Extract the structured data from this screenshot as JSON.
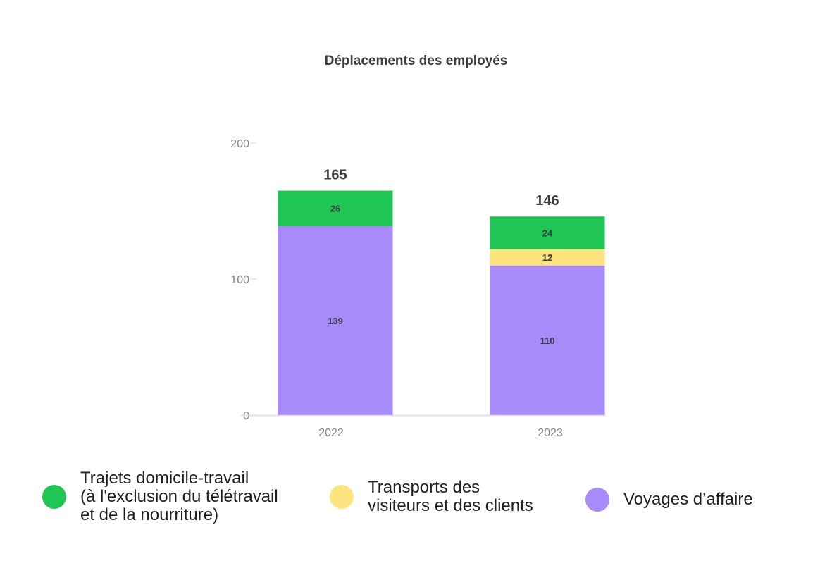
{
  "chart_data": {
    "type": "bar",
    "stacked": true,
    "title": "Déplacements des employés",
    "categories": [
      "2022",
      "2023"
    ],
    "ylim": [
      0,
      200
    ],
    "yticks": [
      0,
      100,
      200
    ],
    "totals": [
      165,
      146
    ],
    "legend_position": "bottom",
    "grid": false,
    "series": [
      {
        "name": "Voyages d’affaire",
        "color": "#a78bfa",
        "values": [
          139,
          110
        ],
        "value_labels": [
          "139",
          "110"
        ]
      },
      {
        "name": "Transports des visiteurs et des clients",
        "color": "#fde47f",
        "values": [
          0,
          12
        ],
        "value_labels": [
          "",
          "12"
        ]
      },
      {
        "name": "Trajets domicile-travail (à l'exclusion du télétravail et de la nourriture)",
        "color": "#1fc653",
        "values": [
          26,
          24
        ],
        "value_labels": [
          "26",
          "24"
        ]
      }
    ]
  },
  "legend": [
    {
      "lines": [
        "Trajets domicile-travail",
        "(à l'exclusion du télétravail",
        "et de la nourriture)"
      ],
      "color": "#1fc653"
    },
    {
      "lines": [
        "Transports des",
        "visiteurs et des clients"
      ],
      "color": "#fde47f"
    },
    {
      "lines": [
        "Voyages d’affaire"
      ],
      "color": "#a78bfa"
    }
  ]
}
